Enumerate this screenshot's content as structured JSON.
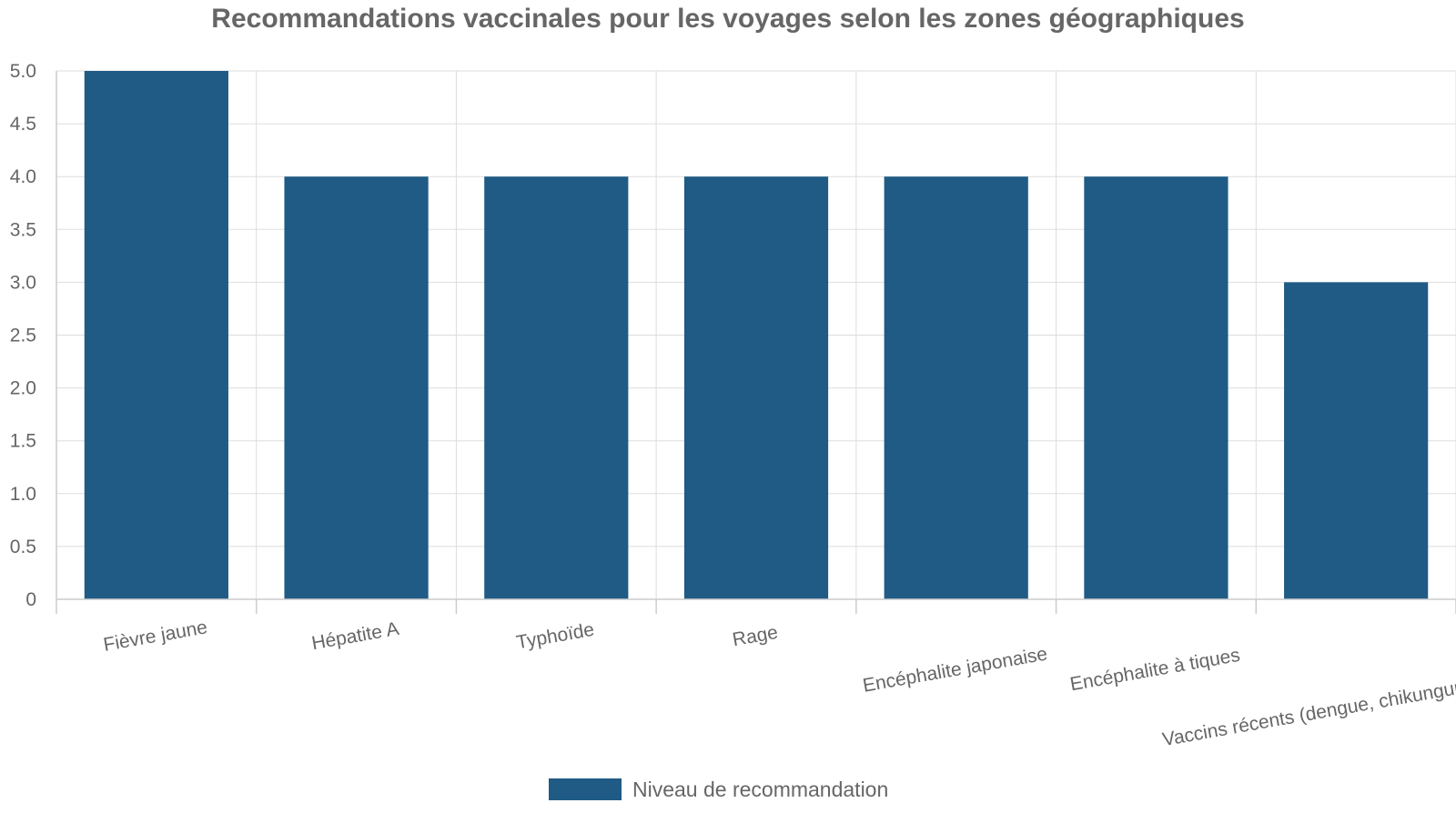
{
  "chart_data": {
    "type": "bar",
    "title": "Recommandations vaccinales pour les voyages selon les zones géographiques",
    "categories": [
      "Fièvre jaune",
      "Hépatite A",
      "Typhoïde",
      "Rage",
      "Encéphalite japonaise",
      "Encéphalite à tiques",
      "Vaccins récents (dengue, chikungunya, Mpox)"
    ],
    "series": [
      {
        "name": "Niveau de recommandation",
        "values": [
          5,
          4,
          4,
          4,
          4,
          4,
          3
        ],
        "color": "#1f5b85"
      }
    ],
    "ylim": [
      0,
      5
    ],
    "yticks": [
      "0",
      "0.5",
      "1.0",
      "1.5",
      "2.0",
      "2.5",
      "3.0",
      "3.5",
      "4.0",
      "4.5",
      "5.0"
    ],
    "xlabel": "",
    "ylabel": "",
    "grid": true,
    "legend_position": "bottom"
  },
  "colors": {
    "bar": "#1f5b85",
    "grid": "#dddddd",
    "text": "#666666"
  }
}
